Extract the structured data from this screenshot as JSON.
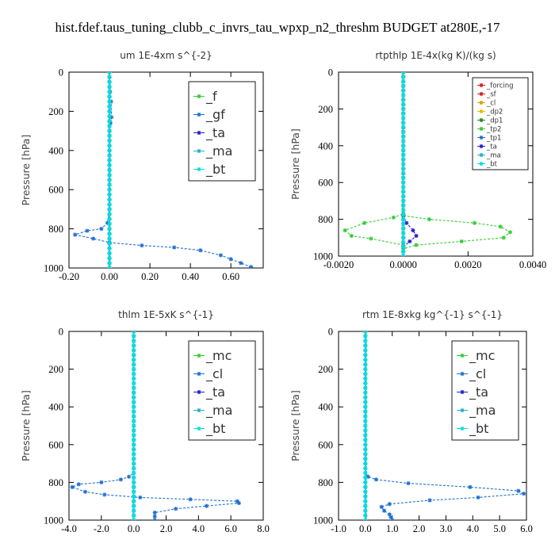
{
  "figure": {
    "title": "hist.fdef.taus_tuning_clubb_c_invrs_tau_wpxp_n2_threshm  BUDGET at280E,-17"
  },
  "chart_data": [
    {
      "type": "line",
      "title": "um   1E-4xm  s^{-2}",
      "ylabel": "Pressure [hPa]",
      "xlim": [
        -0.2,
        0.76
      ],
      "ylim": [
        1000,
        0
      ],
      "xticks": [
        "-0.20",
        "0.00",
        "0.20",
        "0.40",
        "0.60"
      ],
      "xtick_values": [
        -0.2,
        0.0,
        0.2,
        0.4,
        0.6
      ],
      "yticks": [
        0,
        200,
        400,
        600,
        800,
        1000
      ],
      "legend_position": "top-right",
      "legend_style": "large",
      "series": [
        {
          "name": "_f",
          "color": "#33cc33",
          "x": [
            0,
            0,
            0,
            0,
            0,
            0,
            0,
            0,
            0,
            0,
            0,
            0
          ],
          "y": [
            0,
            100,
            200,
            300,
            400,
            500,
            600,
            700,
            800,
            900,
            950,
            1000
          ]
        },
        {
          "name": "_gf",
          "color": "#1e6fd0",
          "x": [
            0,
            0.003,
            0.008,
            0.01,
            0.005,
            0,
            0,
            0,
            -0.01,
            -0.04,
            -0.11,
            -0.17,
            -0.08,
            0.0,
            0.16,
            0.32,
            0.45,
            0.55,
            0.6,
            0.65,
            0.7
          ],
          "y": [
            0,
            100,
            150,
            230,
            260,
            300,
            500,
            700,
            770,
            800,
            810,
            830,
            850,
            870,
            885,
            895,
            910,
            935,
            955,
            975,
            995
          ]
        },
        {
          "name": "_ta",
          "color": "#2020cc",
          "x": [
            0,
            0,
            0,
            0
          ],
          "y": [
            0,
            300,
            700,
            1000
          ]
        },
        {
          "name": "_ma",
          "color": "#20b0d0",
          "x": [
            0,
            0,
            0,
            0
          ],
          "y": [
            0,
            300,
            700,
            1000
          ]
        },
        {
          "name": "_bt",
          "color": "#00e0e0",
          "x": [
            0,
            0,
            0,
            0
          ],
          "y": [
            0,
            300,
            700,
            1000
          ]
        }
      ]
    },
    {
      "type": "line",
      "title": "rtpthlp   1E-4x(kg K)/(kg s)",
      "ylabel": "Pressure [hPa]",
      "xlim": [
        -0.002,
        0.004
      ],
      "ylim": [
        1000,
        0
      ],
      "xticks": [
        "-0.0020",
        "0.0000",
        "0.0020",
        "0.0040"
      ],
      "xtick_values": [
        -0.002,
        0.0,
        0.002,
        0.004
      ],
      "yticks": [
        0,
        200,
        400,
        600,
        800,
        1000
      ],
      "legend_position": "top-right",
      "legend_style": "small",
      "series": [
        {
          "name": "_forcing",
          "color": "#cc2222",
          "x": [
            0,
            0,
            0,
            0,
            0,
            0
          ],
          "y": [
            0,
            200,
            400,
            600,
            800,
            1000
          ]
        },
        {
          "name": "_sf",
          "color": "#cc2222",
          "x": [
            0,
            0,
            0,
            0,
            0,
            0
          ],
          "y": [
            0,
            200,
            400,
            600,
            800,
            1000
          ]
        },
        {
          "name": "_cl",
          "color": "#d9a000",
          "x": [
            0,
            0,
            0,
            0
          ],
          "y": [
            0,
            300,
            700,
            1000
          ]
        },
        {
          "name": "_dp2",
          "color": "#e0c000",
          "x": [
            0,
            0,
            0,
            0
          ],
          "y": [
            0,
            300,
            700,
            1000
          ]
        },
        {
          "name": "_dp1",
          "color": "#228822",
          "x": [
            0,
            0,
            0,
            0
          ],
          "y": [
            0,
            300,
            700,
            1000
          ]
        },
        {
          "name": "_tp2",
          "color": "#33cc33",
          "x": [
            0,
            0,
            -0.0003,
            -0.0012,
            -0.0018,
            -0.0016,
            -0.001,
            0.0,
            0.0,
            0.0008,
            0.0022,
            0.003,
            0.0033,
            0.0031,
            0.0018,
            0.0004,
            0.0,
            0.0
          ],
          "y": [
            0,
            770,
            790,
            820,
            860,
            890,
            905,
            940,
            780,
            800,
            820,
            840,
            870,
            900,
            920,
            940,
            960,
            1000
          ]
        },
        {
          "name": "_tp1",
          "color": "#1e6fd0",
          "x": [
            0,
            0,
            0,
            0
          ],
          "y": [
            0,
            300,
            700,
            1000
          ]
        },
        {
          "name": "_ta",
          "color": "#2020cc",
          "x": [
            0,
            0,
            0.0001,
            0.0003,
            0.0004,
            0.0002,
            0.0,
            0.0
          ],
          "y": [
            0,
            780,
            820,
            860,
            890,
            920,
            950,
            1000
          ]
        },
        {
          "name": "_ma",
          "color": "#20b0d0",
          "x": [
            0,
            0,
            0,
            0
          ],
          "y": [
            0,
            300,
            700,
            1000
          ]
        },
        {
          "name": "_bt",
          "color": "#00e0e0",
          "x": [
            0,
            0,
            0,
            0
          ],
          "y": [
            0,
            300,
            700,
            1000
          ]
        }
      ]
    },
    {
      "type": "line",
      "title": "thlm   1E-5xK  s^{-1}",
      "ylabel": "Pressure [hPa]",
      "xlim": [
        -4.0,
        8.0
      ],
      "ylim": [
        1000,
        0
      ],
      "xticks": [
        "-4.0",
        "-2.0",
        "0.0",
        "2.0",
        "4.0",
        "6.0",
        "8.0"
      ],
      "xtick_values": [
        -4,
        -2,
        0,
        2,
        4,
        6,
        8
      ],
      "yticks": [
        0,
        200,
        400,
        600,
        800,
        1000
      ],
      "legend_position": "top-right",
      "legend_style": "large",
      "series": [
        {
          "name": "_mc",
          "color": "#33cc33",
          "x": [
            0,
            0,
            0,
            0,
            0,
            0,
            0,
            0
          ],
          "y": [
            0,
            150,
            300,
            450,
            600,
            750,
            900,
            1000
          ]
        },
        {
          "name": "_cl",
          "color": "#1e6fd0",
          "x": [
            0,
            0,
            -0.3,
            -0.8,
            -2.0,
            -3.4,
            -3.8,
            -3.0,
            -1.8,
            0.4,
            3.5,
            6.4,
            6.5,
            4.5,
            2.6,
            1.3,
            1.3,
            1.3
          ],
          "y": [
            0,
            750,
            770,
            785,
            800,
            810,
            825,
            850,
            865,
            880,
            890,
            900,
            910,
            925,
            940,
            960,
            980,
            1000
          ]
        },
        {
          "name": "_ta",
          "color": "#2020cc",
          "x": [
            0,
            0,
            0,
            0
          ],
          "y": [
            0,
            300,
            700,
            1000
          ]
        },
        {
          "name": "_ma",
          "color": "#20b0d0",
          "x": [
            0,
            0,
            0,
            0
          ],
          "y": [
            0,
            300,
            700,
            1000
          ]
        },
        {
          "name": "_bt",
          "color": "#00e0e0",
          "x": [
            0,
            0,
            0,
            0
          ],
          "y": [
            0,
            300,
            700,
            1000
          ]
        }
      ]
    },
    {
      "type": "line",
      "title": "rtm   1E-8xkg  kg^{-1}  s^{-1}",
      "ylabel": "Pressure [hPa]",
      "xlim": [
        -1.0,
        6.0
      ],
      "ylim": [
        1000,
        0
      ],
      "xticks": [
        "-1.0",
        "0.0",
        "1.0",
        "2.0",
        "3.0",
        "4.0",
        "5.0",
        "6.0"
      ],
      "xtick_values": [
        -1,
        0,
        1,
        2,
        3,
        4,
        5,
        6
      ],
      "yticks": [
        0,
        200,
        400,
        600,
        800,
        1000
      ],
      "legend_position": "top-right",
      "legend_style": "large",
      "series": [
        {
          "name": "_mc",
          "color": "#33cc33",
          "x": [
            0,
            0,
            0,
            0,
            0,
            0,
            0,
            0
          ],
          "y": [
            0,
            150,
            300,
            450,
            600,
            750,
            900,
            1000
          ]
        },
        {
          "name": "_cl",
          "color": "#1e6fd0",
          "x": [
            0,
            0,
            0.1,
            0.4,
            1.6,
            3.9,
            5.7,
            5.9,
            4.2,
            2.4,
            0.9,
            0.6,
            0.7,
            0.9,
            0.95,
            1.0
          ],
          "y": [
            0,
            750,
            770,
            785,
            805,
            825,
            845,
            860,
            880,
            895,
            915,
            930,
            950,
            970,
            985,
            1000
          ]
        },
        {
          "name": "_ta",
          "color": "#2020cc",
          "x": [
            0,
            0,
            0,
            0
          ],
          "y": [
            0,
            300,
            700,
            1000
          ]
        },
        {
          "name": "_ma",
          "color": "#20b0d0",
          "x": [
            0,
            0,
            0,
            0
          ],
          "y": [
            0,
            300,
            700,
            1000
          ]
        },
        {
          "name": "_bt",
          "color": "#00e0e0",
          "x": [
            0,
            0,
            0,
            0
          ],
          "y": [
            0,
            300,
            700,
            1000
          ]
        }
      ]
    }
  ]
}
